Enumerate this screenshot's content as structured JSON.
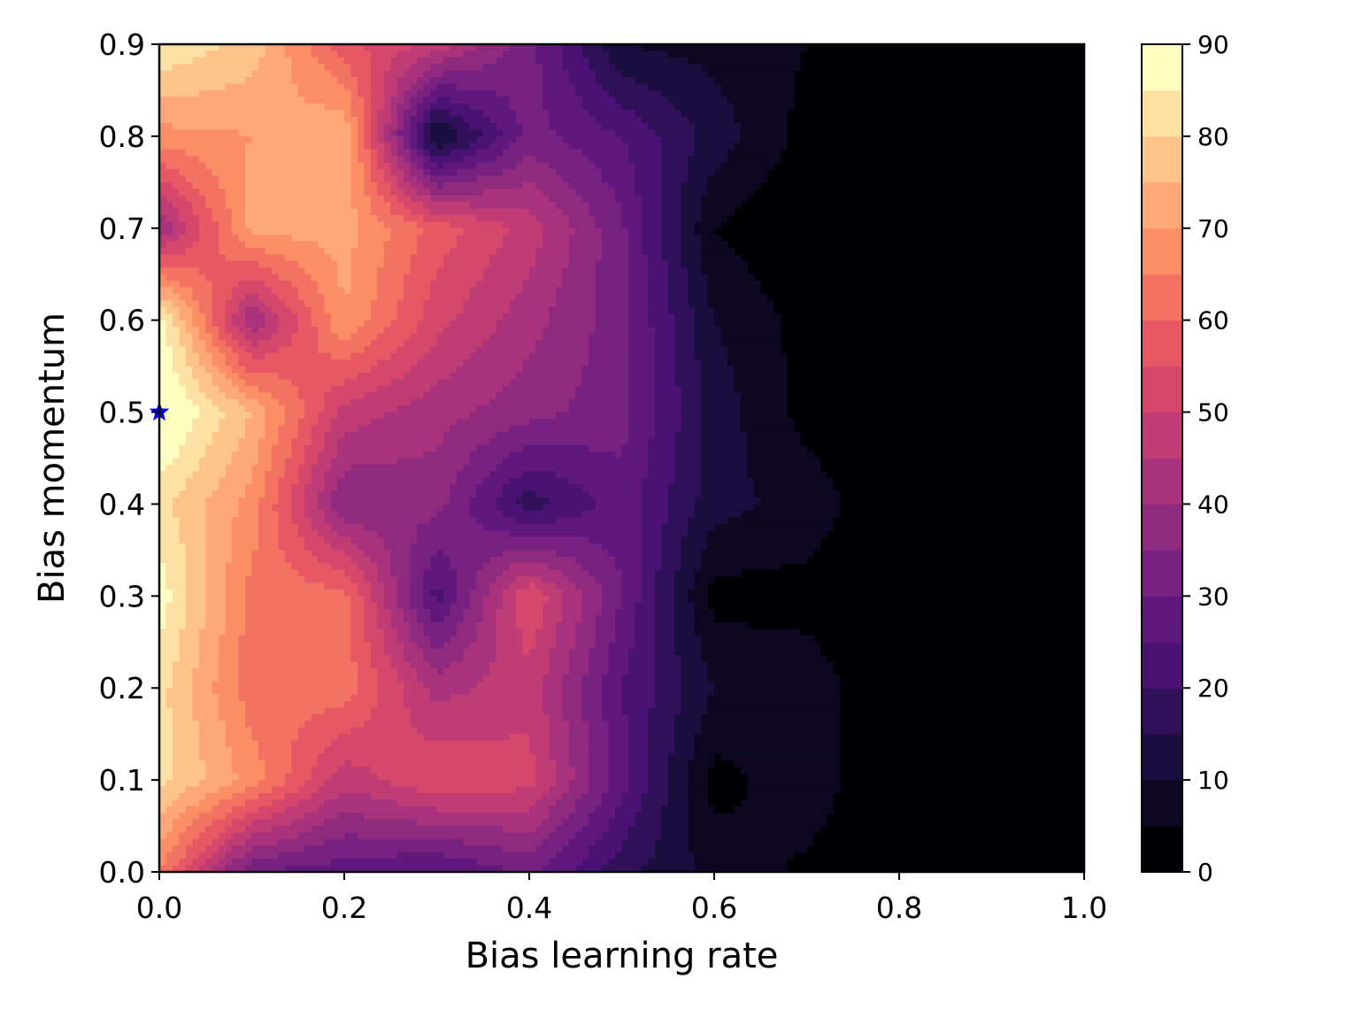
{
  "chart_data": {
    "type": "contour",
    "title": "",
    "xlabel": "Bias learning rate",
    "ylabel": "Bias momentum",
    "xlim": [
      0.0,
      1.0
    ],
    "ylim": [
      0.0,
      0.9
    ],
    "x_ticks": [
      "0.0",
      "0.2",
      "0.4",
      "0.6",
      "0.8",
      "1.0"
    ],
    "y_ticks": [
      "0.0",
      "0.1",
      "0.2",
      "0.3",
      "0.4",
      "0.5",
      "0.6",
      "0.7",
      "0.8",
      "0.9"
    ],
    "colormap": "magma",
    "levels": [
      0,
      5,
      10,
      15,
      20,
      25,
      30,
      35,
      40,
      45,
      50,
      55,
      60,
      65,
      70,
      75,
      80,
      85,
      90
    ],
    "colorbar_ticks": [
      "0",
      "10",
      "20",
      "30",
      "40",
      "50",
      "60",
      "70",
      "80",
      "90"
    ],
    "grid": false,
    "x": [
      0.0,
      0.1,
      0.2,
      0.3,
      0.4,
      0.5,
      0.6,
      0.7,
      0.8,
      0.9,
      1.0
    ],
    "y": [
      0.0,
      0.1,
      0.2,
      0.3,
      0.4,
      0.5,
      0.6,
      0.7,
      0.8,
      0.9
    ],
    "z": [
      [
        65,
        30,
        27,
        24,
        31,
        17,
        8,
        4,
        0,
        0,
        0
      ],
      [
        82,
        68,
        47,
        55,
        52,
        27,
        3,
        8,
        0,
        0,
        0
      ],
      [
        82,
        62,
        63,
        43,
        48,
        25,
        10,
        8,
        0,
        0,
        0
      ],
      [
        88,
        63,
        62,
        23,
        55,
        30,
        3,
        3,
        0,
        0,
        0
      ],
      [
        82,
        68,
        35,
        37,
        17,
        28,
        12,
        8,
        0,
        0,
        0
      ],
      [
        93,
        75,
        48,
        42,
        37,
        32,
        13,
        3,
        0,
        0,
        0
      ],
      [
        88,
        40,
        70,
        52,
        42,
        32,
        10,
        3,
        0,
        0,
        0
      ],
      [
        40,
        72,
        72,
        58,
        48,
        31,
        5,
        0,
        0,
        0,
        0
      ],
      [
        68,
        70,
        75,
        8,
        32,
        25,
        13,
        3,
        0,
        0,
        0
      ],
      [
        85,
        78,
        57,
        48,
        32,
        10,
        8,
        5,
        0,
        0,
        0
      ]
    ],
    "marker": {
      "type": "star",
      "x": 0.0,
      "y": 0.5,
      "color": "#0000ff"
    }
  }
}
